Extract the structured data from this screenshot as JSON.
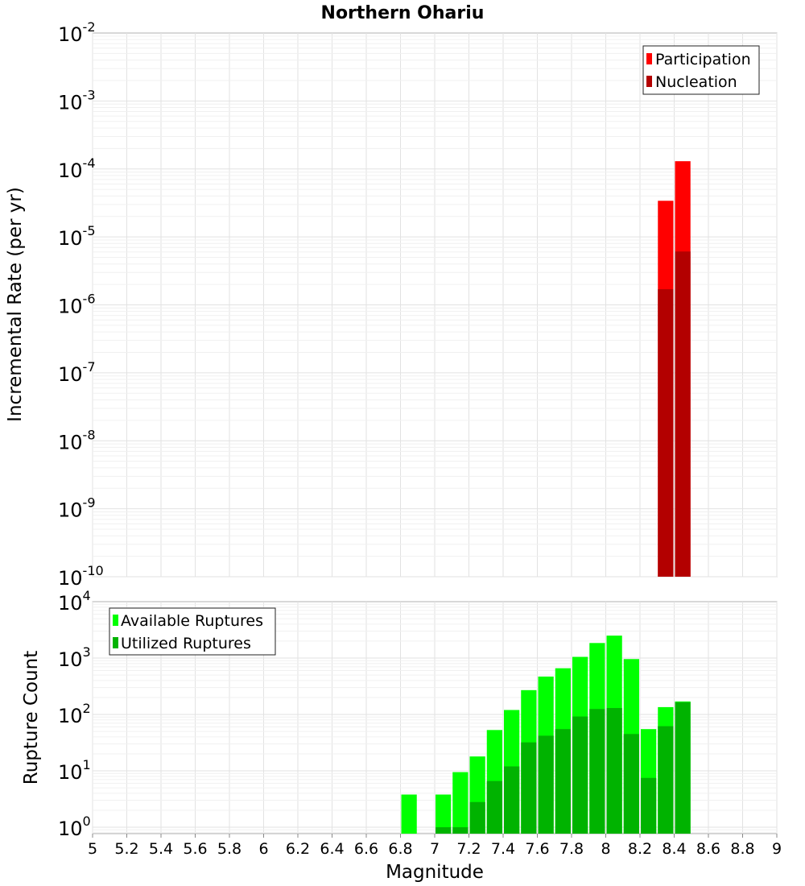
{
  "chart_data": [
    {
      "type": "bar",
      "title": "Northern Ohariu",
      "xlabel": "Magnitude",
      "ylabel": "Incremental Rate (per yr)",
      "yscale": "log",
      "ylim": [
        1e-10,
        0.01
      ],
      "xlim": [
        5,
        9
      ],
      "grid": true,
      "legend_position": "top-right",
      "y_ticks": [
        {
          "base": "10",
          "exp": "-10"
        },
        {
          "base": "10",
          "exp": "-9"
        },
        {
          "base": "10",
          "exp": "-8"
        },
        {
          "base": "10",
          "exp": "-7"
        },
        {
          "base": "10",
          "exp": "-6"
        },
        {
          "base": "10",
          "exp": "-5"
        },
        {
          "base": "10",
          "exp": "-4"
        },
        {
          "base": "10",
          "exp": "-3"
        },
        {
          "base": "10",
          "exp": "-2"
        }
      ],
      "x": [
        8.35,
        8.45
      ],
      "series": [
        {
          "name": "Participation",
          "color": "#ff0000",
          "values": [
            3.4e-05,
            0.00013
          ]
        },
        {
          "name": "Nucleation",
          "color": "#b30000",
          "values": [
            1.7e-06,
            6.1e-06
          ]
        }
      ]
    },
    {
      "type": "bar",
      "title": "",
      "xlabel": "Magnitude",
      "ylabel": "Rupture Count",
      "yscale": "log",
      "ylim": [
        0.77,
        10000
      ],
      "xlim": [
        5,
        9
      ],
      "grid": true,
      "legend_position": "top-left",
      "x_ticks": [
        "5",
        "5.2",
        "5.4",
        "5.6",
        "5.8",
        "6",
        "6.2",
        "6.4",
        "6.6",
        "6.8",
        "7",
        "7.2",
        "7.4",
        "7.6",
        "7.8",
        "8",
        "8.2",
        "8.4",
        "8.6",
        "8.8",
        "9"
      ],
      "y_ticks": [
        {
          "base": "10",
          "exp": "0"
        },
        {
          "base": "10",
          "exp": "1"
        },
        {
          "base": "10",
          "exp": "2"
        },
        {
          "base": "10",
          "exp": "3"
        },
        {
          "base": "10",
          "exp": "4"
        }
      ],
      "x": [
        6.85,
        7.05,
        7.15,
        7.25,
        7.35,
        7.45,
        7.55,
        7.65,
        7.75,
        7.85,
        7.95,
        8.05,
        8.15,
        8.25,
        8.35,
        8.45
      ],
      "series": [
        {
          "name": "Available Ruptures",
          "color": "#00ff00",
          "values": [
            3.8,
            3.8,
            9.5,
            18,
            53,
            120,
            270,
            470,
            660,
            1050,
            1850,
            2500,
            960,
            55,
            135,
            170
          ]
        },
        {
          "name": "Utilized Ruptures",
          "color": "#00b300",
          "values": [
            0,
            1,
            1,
            2.8,
            6.6,
            12,
            32,
            42,
            55,
            92,
            125,
            130,
            45,
            7.5,
            62,
            165
          ]
        }
      ]
    }
  ]
}
